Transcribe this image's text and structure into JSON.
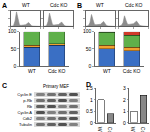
{
  "chart_data": [
    {
      "type": "area",
      "title": "WT",
      "color": "#8c8c8c",
      "tick_labels": false,
      "x": [
        0,
        50,
        100,
        150,
        200,
        250,
        300,
        350,
        400,
        450,
        500,
        550,
        600,
        650,
        700,
        750,
        800,
        850,
        900,
        950,
        1000
      ],
      "values": [
        0,
        1,
        5,
        40,
        110,
        60,
        10,
        8,
        9,
        10,
        12,
        20,
        30,
        18,
        5,
        2,
        1,
        0,
        0,
        0,
        0
      ],
      "xlim": [
        0,
        1000
      ],
      "xticks": [
        0,
        500,
        1000
      ],
      "ylim": [
        0,
        120
      ],
      "yticks": [
        0,
        60,
        120
      ]
    },
    {
      "type": "area",
      "title": "Cdc KO",
      "color": "#8c8c8c",
      "tick_labels": false,
      "x": [
        0,
        50,
        100,
        150,
        200,
        250,
        300,
        350,
        400,
        450,
        500,
        550,
        600,
        650,
        700,
        750,
        800,
        850,
        900,
        950,
        1000
      ],
      "values": [
        0,
        1,
        4,
        35,
        100,
        55,
        12,
        10,
        11,
        12,
        14,
        22,
        34,
        20,
        6,
        2,
        1,
        0,
        0,
        0,
        0
      ],
      "xlim": [
        0,
        1000
      ],
      "xticks": [
        0,
        500,
        1000
      ],
      "ylim": [
        0,
        120
      ],
      "yticks": [
        0,
        60,
        120
      ]
    },
    {
      "type": "area",
      "title": "WT",
      "color": "#8c8c8c",
      "tick_labels": false,
      "x": [
        0,
        50,
        100,
        150,
        200,
        250,
        300,
        350,
        400,
        450,
        500,
        550,
        600,
        650,
        700,
        750,
        800,
        850,
        900,
        950,
        1000
      ],
      "values": [
        0,
        2,
        6,
        30,
        90,
        50,
        14,
        12,
        13,
        14,
        16,
        26,
        38,
        22,
        7,
        3,
        1,
        0,
        0,
        0,
        0
      ],
      "xlim": [
        0,
        1000
      ],
      "xticks": [
        0,
        500,
        1000
      ],
      "ylim": [
        0,
        120
      ],
      "yticks": [
        0,
        60,
        120
      ]
    },
    {
      "type": "area",
      "title": "Cdc KO",
      "color": "#8c8c8c",
      "tick_labels": false,
      "x": [
        0,
        50,
        100,
        150,
        200,
        250,
        300,
        350,
        400,
        450,
        500,
        550,
        600,
        650,
        700,
        750,
        800,
        850,
        900,
        950,
        1000
      ],
      "values": [
        0,
        3,
        8,
        28,
        80,
        45,
        16,
        15,
        16,
        18,
        20,
        30,
        40,
        25,
        9,
        4,
        2,
        1,
        0,
        0,
        0
      ],
      "xlim": [
        0,
        1000
      ],
      "xticks": [
        0,
        500,
        1000
      ],
      "ylim": [
        0,
        120
      ],
      "yticks": [
        0,
        60,
        120
      ]
    },
    {
      "type": "bar",
      "title": "A",
      "stacked": true,
      "categories": [
        "WT",
        "Cdc KO"
      ],
      "series": [
        {
          "color": "#3a6fc4",
          "values": [
            55,
            60
          ]
        },
        {
          "color": "#f0a030",
          "values": [
            5,
            5
          ]
        },
        {
          "color": "#5fb04a",
          "values": [
            40,
            35
          ]
        }
      ],
      "ylim": [
        0,
        100
      ],
      "yticks": [
        0,
        50,
        100
      ]
    },
    {
      "type": "bar",
      "title": "B",
      "stacked": true,
      "categories": [
        "WT",
        "Cdc KO"
      ],
      "series": [
        {
          "color": "#3a6fc4",
          "values": [
            50,
            45
          ]
        },
        {
          "color": "#f0a030",
          "values": [
            10,
            10
          ]
        },
        {
          "color": "#5fb04a",
          "values": [
            38,
            35
          ]
        },
        {
          "color": "#d03a2a",
          "values": [
            2,
            10
          ]
        }
      ],
      "ylim": [
        0,
        100
      ],
      "yticks": [
        0,
        50,
        100
      ]
    },
    {
      "type": "bar",
      "title": "D",
      "categories": [
        "WT",
        "Cdc KO"
      ],
      "values": [
        1,
        0.4
      ],
      "colors": [
        "#ffffff",
        "#888888"
      ],
      "ylim": [
        0,
        1.5
      ],
      "yticks": [
        0,
        0.5,
        1,
        1.5
      ]
    },
    {
      "type": "bar",
      "categories": [
        "WT",
        "Cdc KO"
      ],
      "values": [
        1,
        2.4
      ],
      "colors": [
        "#ffffff",
        "#888888"
      ],
      "ylim": [
        0,
        3
      ],
      "yticks": [
        0,
        1,
        2,
        3
      ]
    }
  ],
  "blot": {
    "title": "C",
    "header": "Primary MEF",
    "rows": [
      "Cyclin E",
      "p-Rb",
      "Rb",
      "Cyclin A",
      "Cdk2",
      "Tubulin"
    ]
  }
}
